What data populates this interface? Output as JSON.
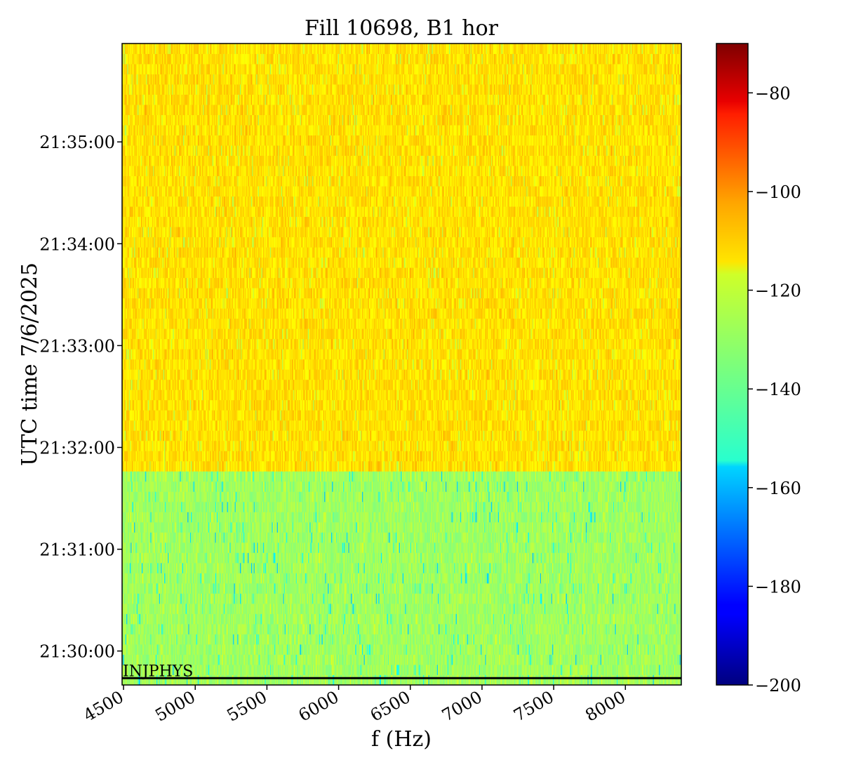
{
  "chart_data": {
    "type": "heatmap",
    "title": "Fill 10698, B1 hor",
    "xlabel": "f (Hz)",
    "ylabel": "UTC time 7/6/2025",
    "xlim": [
      4490,
      8390
    ],
    "ylim": [
      "21:29:40",
      "21:35:58"
    ],
    "x_ticks": [
      4500,
      5000,
      5500,
      6000,
      6500,
      7000,
      7500,
      8000
    ],
    "x_tick_labels": [
      "4500",
      "5000",
      "5500",
      "6000",
      "6500",
      "7000",
      "7500",
      "8000"
    ],
    "y_ticks": [
      "21:30:00",
      "21:31:00",
      "21:32:00",
      "21:33:00",
      "21:34:00",
      "21:35:00"
    ],
    "y_tick_labels": [
      "21:30:00",
      "21:31:00",
      "21:32:00",
      "21:33:00",
      "21:34:00",
      "21:35:00"
    ],
    "colormap": "jet",
    "colorbar": {
      "range": [
        -200,
        -70
      ],
      "ticks": [
        -200,
        -180,
        -160,
        -140,
        -120,
        -100,
        -80
      ],
      "tick_labels": [
        "−200",
        "−180",
        "−160",
        "−140",
        "−120",
        "−100",
        "−80"
      ]
    },
    "regions": [
      {
        "from": "21:29:40",
        "to": "21:31:46",
        "typical_value": -131,
        "min_value": -160,
        "max_value": -122
      },
      {
        "from": "21:31:46",
        "to": "21:35:58",
        "typical_value": -115,
        "min_value": -130,
        "max_value": -108
      }
    ],
    "annotations": [
      {
        "text": "INJPHYS",
        "time": "21:29:44",
        "f_start": 4490,
        "style": "horizontal-line",
        "color": "#000000"
      }
    ],
    "grid": false,
    "colors": {
      "axis": "#000000",
      "background": "#ffffff"
    }
  }
}
